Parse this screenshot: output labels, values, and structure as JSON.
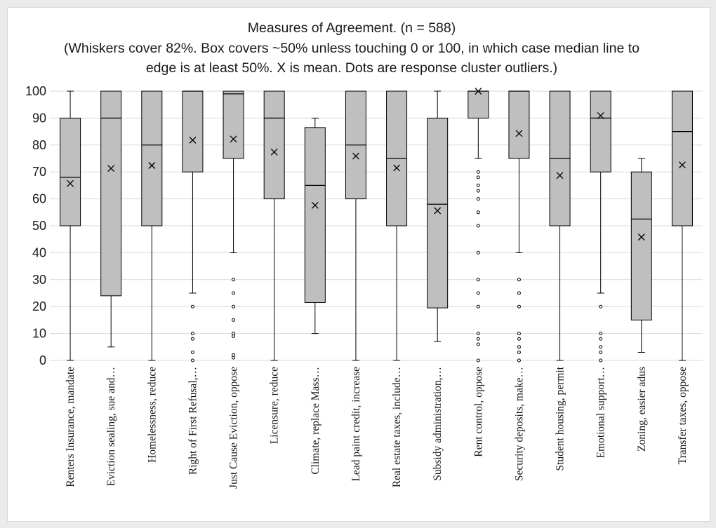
{
  "chart_data": {
    "type": "box",
    "title": [
      "Measures of Agreement. (n = 588)",
      "(Whiskers cover 82%. Box covers ~50% unless touching 0 or 100, in which case median line to",
      "edge is at least 50%. X is mean. Dots are response cluster outliers.)"
    ],
    "ylim": [
      0,
      100
    ],
    "yticks": [
      0,
      10,
      20,
      30,
      40,
      50,
      60,
      70,
      80,
      90,
      100
    ],
    "grid": true,
    "colors": {
      "box_fill": "#bfbfbf",
      "stroke": "#000000",
      "grid": "#d9d9d9"
    },
    "categories": [
      "Renters Insurance, mandate",
      "Eviction sealing, sue and…",
      "Homelessness, reduce",
      "Right of First Refusal,…",
      "Just Cause Eviction, oppose",
      "Licensure, reduce",
      "Climate, replace Mass…",
      "Lead paint credit, increase",
      "Real estate taxes, include…",
      "Subsidy administration,…",
      "Rent control, oppose",
      "Security deposits, make…",
      "Student housing, permit",
      "Emotional support…",
      "Zoning, easier adus",
      "Transfer taxes, oppose"
    ],
    "boxes": [
      {
        "whisker_low": 0,
        "q1": 50,
        "median": 68,
        "q3": 90,
        "whisker_high": 100,
        "mean": 65.7,
        "outliers": []
      },
      {
        "whisker_low": 5,
        "q1": 24,
        "median": 90,
        "q3": 100,
        "whisker_high": 100,
        "mean": 71.3,
        "outliers": []
      },
      {
        "whisker_low": 0,
        "q1": 50,
        "median": 80,
        "q3": 100,
        "whisker_high": 100,
        "mean": 72.4,
        "outliers": []
      },
      {
        "whisker_low": 25,
        "q1": 70,
        "median": 100,
        "q3": 100,
        "whisker_high": 100,
        "mean": 81.8,
        "outliers": [
          20,
          10,
          8,
          3,
          0
        ]
      },
      {
        "whisker_low": 40,
        "q1": 75,
        "median": 99,
        "q3": 100,
        "whisker_high": 100,
        "mean": 82.2,
        "outliers": [
          30,
          25,
          20,
          15,
          10,
          9,
          2,
          1
        ]
      },
      {
        "whisker_low": 0,
        "q1": 60,
        "median": 90,
        "q3": 100,
        "whisker_high": 100,
        "mean": 77.4,
        "outliers": []
      },
      {
        "whisker_low": 10,
        "q1": 21.5,
        "median": 65,
        "q3": 86.5,
        "whisker_high": 90,
        "mean": 57.6,
        "outliers": []
      },
      {
        "whisker_low": 0,
        "q1": 60,
        "median": 80,
        "q3": 100,
        "whisker_high": 100,
        "mean": 75.9,
        "outliers": []
      },
      {
        "whisker_low": 0,
        "q1": 50,
        "median": 75,
        "q3": 100,
        "whisker_high": 100,
        "mean": 71.5,
        "outliers": []
      },
      {
        "whisker_low": 7,
        "q1": 19.5,
        "median": 58,
        "q3": 90,
        "whisker_high": 100,
        "mean": 55.6,
        "outliers": []
      },
      {
        "whisker_low": 75,
        "q1": 90,
        "median": 100,
        "q3": 100,
        "whisker_high": 100,
        "mean": 100,
        "outliers": [
          70,
          68,
          65,
          63,
          60,
          55,
          50,
          40,
          30,
          25,
          20,
          10,
          8,
          6,
          0
        ]
      },
      {
        "whisker_low": 40,
        "q1": 75,
        "median": 100,
        "q3": 100,
        "whisker_high": 100,
        "mean": 84.3,
        "outliers": [
          30,
          25,
          20,
          10,
          8,
          5,
          3,
          0
        ]
      },
      {
        "whisker_low": 0,
        "q1": 50,
        "median": 75,
        "q3": 100,
        "whisker_high": 100,
        "mean": 68.7,
        "outliers": []
      },
      {
        "whisker_low": 25,
        "q1": 70,
        "median": 90,
        "q3": 100,
        "whisker_high": 100,
        "mean": 90.9,
        "outliers": [
          20,
          10,
          8,
          5,
          3,
          0
        ]
      },
      {
        "whisker_low": 3,
        "q1": 15,
        "median": 52.5,
        "q3": 70,
        "whisker_high": 75,
        "mean": 45.8,
        "outliers": []
      },
      {
        "whisker_low": 0,
        "q1": 50,
        "median": 85,
        "q3": 100,
        "whisker_high": 100,
        "mean": 72.6,
        "outliers": []
      }
    ]
  }
}
